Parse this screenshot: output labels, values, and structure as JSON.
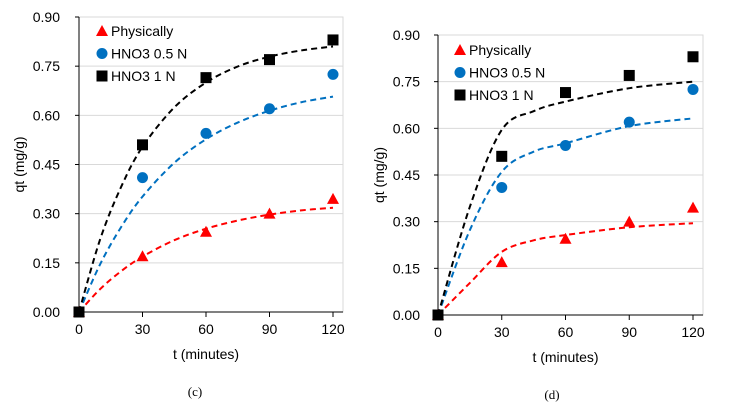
{
  "chart_data": [
    {
      "type": "scatter",
      "caption": "(c)",
      "xlabel": "t (minutes)",
      "ylabel": "qt (mg/g)",
      "xlim": [
        0,
        120
      ],
      "ylim": [
        0,
        0.9
      ],
      "xticks": [
        "0",
        "30",
        "60",
        "90",
        "120"
      ],
      "yticks": [
        "0.00",
        "0.15",
        "0.30",
        "0.45",
        "0.60",
        "0.75",
        "0.90"
      ],
      "grid": "horizontal",
      "legend_position": "top-left",
      "x": [
        0,
        30,
        60,
        90,
        120
      ],
      "series": [
        {
          "name": "Physically",
          "marker": "triangle",
          "color": "#ff0000",
          "values": [
            0,
            0.17,
            0.245,
            0.3,
            0.345
          ]
        },
        {
          "name": "HNO3 0.5 N",
          "marker": "circle",
          "color": "#0070c0",
          "values": [
            0,
            0.41,
            0.545,
            0.62,
            0.725
          ]
        },
        {
          "name": "HNO3 1 N",
          "marker": "square",
          "color": "#000000",
          "values": [
            0,
            0.51,
            0.715,
            0.77,
            0.83
          ]
        }
      ],
      "fits": [
        {
          "color": "#ff0000",
          "x": [
            0,
            10,
            20,
            30,
            45,
            60,
            75,
            90,
            105,
            120
          ],
          "y": [
            0,
            0.07,
            0.125,
            0.169,
            0.219,
            0.254,
            0.279,
            0.297,
            0.31,
            0.318
          ]
        },
        {
          "color": "#0070c0",
          "x": [
            0,
            10,
            20,
            30,
            45,
            60,
            75,
            90,
            105,
            120
          ],
          "y": [
            0,
            0.146,
            0.26,
            0.352,
            0.455,
            0.527,
            0.578,
            0.614,
            0.64,
            0.657
          ]
        },
        {
          "color": "#000000",
          "x": [
            0,
            10,
            20,
            30,
            45,
            60,
            75,
            90,
            105,
            120
          ],
          "y": [
            0,
            0.222,
            0.383,
            0.504,
            0.624,
            0.7,
            0.749,
            0.779,
            0.798,
            0.81
          ]
        }
      ]
    },
    {
      "type": "scatter",
      "caption": "(d)",
      "xlabel": "t (minutes)",
      "ylabel": "qt (mg/g)",
      "xlim": [
        0,
        120
      ],
      "ylim": [
        0,
        0.9
      ],
      "xticks": [
        "0",
        "30",
        "60",
        "90",
        "120"
      ],
      "yticks": [
        "0.00",
        "0.15",
        "0.30",
        "0.45",
        "0.60",
        "0.75",
        "0.90"
      ],
      "grid": "horizontal",
      "legend_position": "top-left",
      "x": [
        0,
        30,
        60,
        90,
        120
      ],
      "series": [
        {
          "name": "Physically",
          "marker": "triangle",
          "color": "#ff0000",
          "values": [
            0,
            0.17,
            0.245,
            0.3,
            0.345
          ]
        },
        {
          "name": "HNO3 0.5 N",
          "marker": "circle",
          "color": "#0070c0",
          "values": [
            0,
            0.41,
            0.545,
            0.62,
            0.725
          ]
        },
        {
          "name": "HNO3 1 N",
          "marker": "square",
          "color": "#000000",
          "values": [
            0,
            0.51,
            0.715,
            0.77,
            0.83
          ]
        }
      ],
      "fits": [
        {
          "color": "#ff0000",
          "x": [
            0,
            15,
            30,
            45,
            60,
            90,
            120
          ],
          "y": [
            0,
            0.103,
            0.203,
            0.24,
            0.257,
            0.282,
            0.295
          ]
        },
        {
          "color": "#0070c0",
          "x": [
            0,
            15,
            30,
            45,
            60,
            90,
            120
          ],
          "y": [
            0,
            0.273,
            0.46,
            0.525,
            0.552,
            0.607,
            0.632
          ]
        },
        {
          "color": "#000000",
          "x": [
            0,
            15,
            30,
            45,
            60,
            90,
            120
          ],
          "y": [
            0,
            0.348,
            0.595,
            0.655,
            0.686,
            0.729,
            0.75
          ]
        }
      ]
    }
  ]
}
